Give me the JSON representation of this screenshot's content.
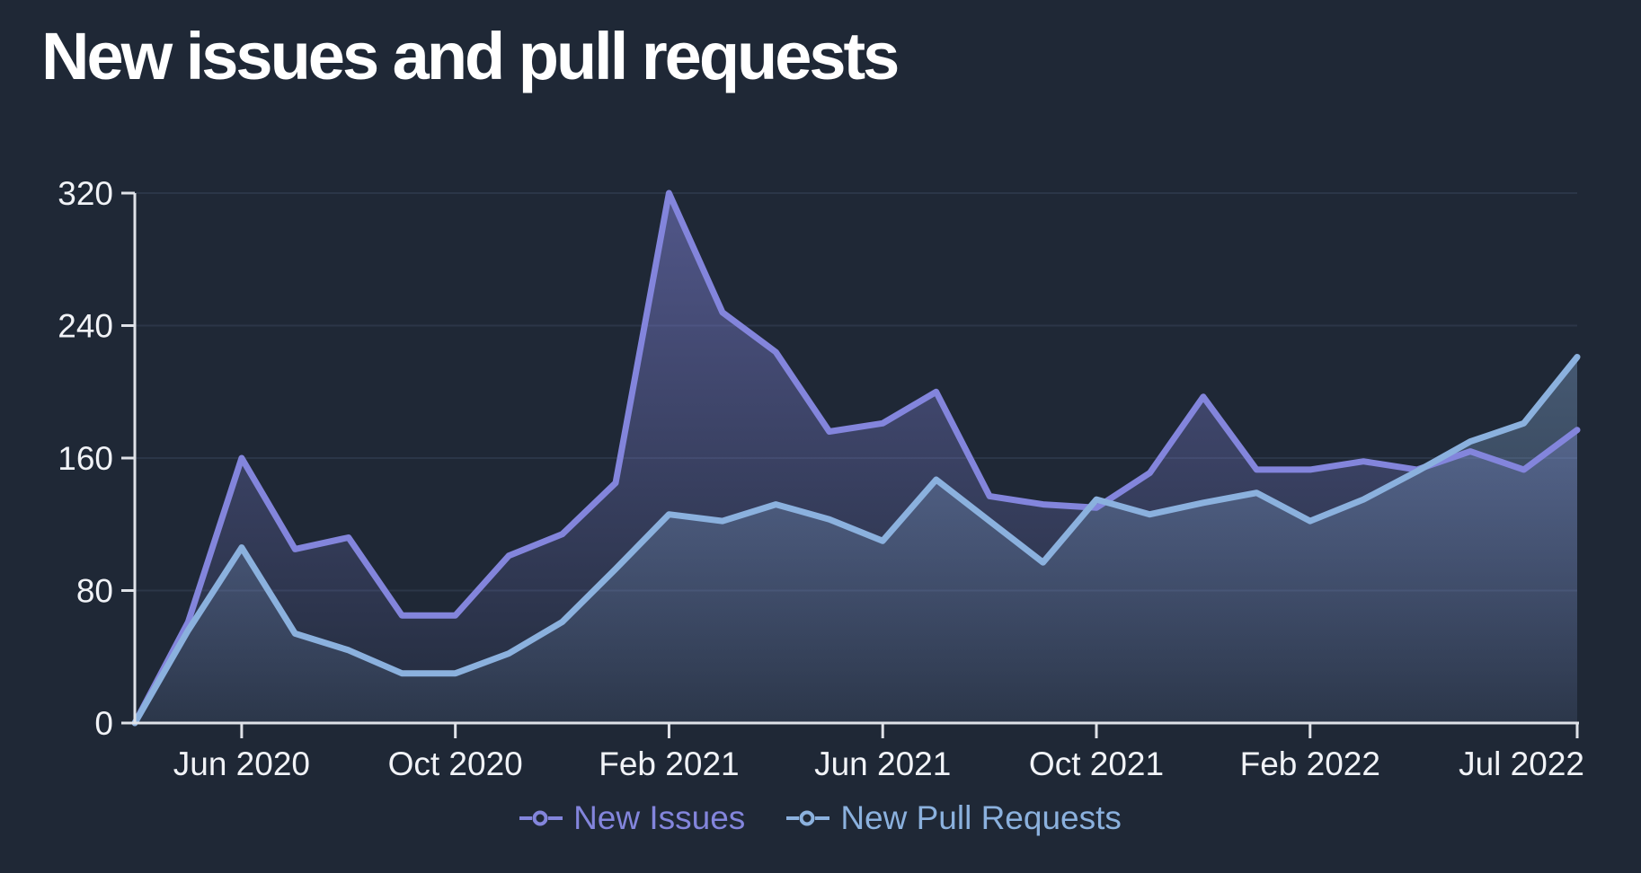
{
  "title": "New issues and pull requests",
  "colors": {
    "background": "#1f2836",
    "grid": "#2b3648",
    "axis": "#dfe2e8",
    "tick_text": "#f1f3f7",
    "title_text": "#ffffff",
    "issues": "#8385dc",
    "pull_requests": "#8bb1de"
  },
  "chart_data": {
    "type": "area",
    "title": "New issues and pull requests",
    "xlabel": "",
    "ylabel": "",
    "ylim": [
      0,
      320
    ],
    "yticks": [
      0,
      80,
      160,
      240,
      320
    ],
    "grid": true,
    "legend_position": "bottom",
    "x": [
      "Apr 2020",
      "May 2020",
      "Jun 2020",
      "Jul 2020",
      "Aug 2020",
      "Sep 2020",
      "Oct 2020",
      "Nov 2020",
      "Dec 2020",
      "Jan 2021",
      "Feb 2021",
      "Mar 2021",
      "Apr 2021",
      "May 2021",
      "Jun 2021",
      "Jul 2021",
      "Aug 2021",
      "Sep 2021",
      "Oct 2021",
      "Nov 2021",
      "Dec 2021",
      "Jan 2022",
      "Feb 2022",
      "Mar 2022",
      "Apr 2022",
      "May 2022",
      "Jun 2022",
      "Jul 2022"
    ],
    "xticks": [
      {
        "index": 2,
        "label": "Jun 2020"
      },
      {
        "index": 6,
        "label": "Oct 2020"
      },
      {
        "index": 10,
        "label": "Feb 2021"
      },
      {
        "index": 14,
        "label": "Jun 2021"
      },
      {
        "index": 18,
        "label": "Oct 2021"
      },
      {
        "index": 22,
        "label": "Feb 2022"
      },
      {
        "index": 27,
        "label": "Jul 2022"
      }
    ],
    "series": [
      {
        "name": "New Issues",
        "color": "#8385dc",
        "values": [
          0,
          61,
          160,
          105,
          112,
          65,
          65,
          101,
          114,
          145,
          320,
          248,
          224,
          176,
          181,
          200,
          137,
          132,
          130,
          151,
          197,
          153,
          153,
          158,
          153,
          164,
          153,
          177
        ]
      },
      {
        "name": "New Pull Requests",
        "color": "#8bb1de",
        "values": [
          0,
          56,
          106,
          54,
          44,
          30,
          30,
          42,
          61,
          93,
          126,
          122,
          132,
          123,
          110,
          147,
          122,
          97,
          135,
          126,
          133,
          139,
          122,
          135,
          152,
          170,
          181,
          221
        ]
      }
    ]
  }
}
